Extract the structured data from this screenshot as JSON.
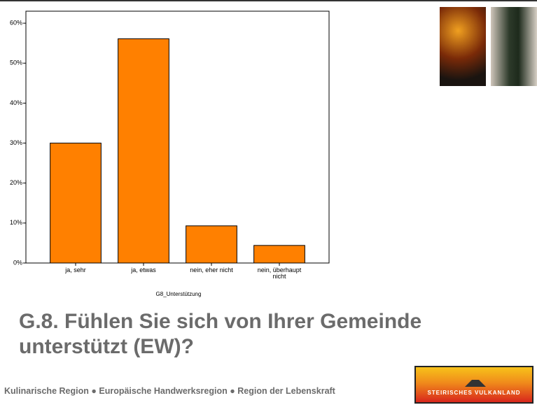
{
  "chart_data": {
    "type": "bar",
    "x_label": "G8_Unterstützung",
    "categories": [
      "ja, sehr",
      "ja, etwas",
      "nein, eher nicht",
      "nein, überhaupt nicht"
    ],
    "values": [
      30,
      56.1,
      9.3,
      4.4
    ],
    "color": "#ff8000",
    "ylim": [
      0,
      63
    ],
    "yticks": [
      {
        "value": 0,
        "label": "0%"
      },
      {
        "value": 10,
        "label": "10%"
      },
      {
        "value": 20,
        "label": "20%"
      },
      {
        "value": 30,
        "label": "30%"
      },
      {
        "value": 40,
        "label": "40%"
      },
      {
        "value": 50,
        "label": "50%"
      },
      {
        "value": 60,
        "label": "60%"
      }
    ],
    "grid": false
  },
  "slide": {
    "title": "G.8. Fühlen Sie sich von Ihrer Gemeinde unterstützt (EW)?",
    "footer": "Kulinarische Region ● Europäische Handwerksregion ● Region der Lebenskraft",
    "logo_text": "STEIRISCHES VULKANLAND"
  }
}
